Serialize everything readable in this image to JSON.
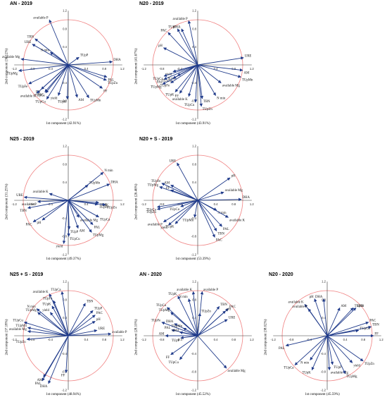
{
  "ticks": [
    -1.2,
    -0.8,
    -0.4,
    0.4,
    0.8,
    1.2
  ],
  "arrow_color": "#1f3a8a",
  "circle_color": "#f08080",
  "chart_data": [
    {
      "type": "biplot",
      "title": "AN - 2019",
      "xlabel": "1st component (42.91%)",
      "ylabel": "2nd component (30.12%)",
      "xlim": [
        -1.2,
        1.2
      ],
      "ylim": [
        -1.2,
        1.2
      ],
      "grid": false,
      "vectors": [
        {
          "label": "available P",
          "x": -0.42,
          "y": 1.0
        },
        {
          "label": "TBN",
          "x": -0.74,
          "y": 0.58
        },
        {
          "label": "URE",
          "x": -0.8,
          "y": 0.46
        },
        {
          "label": "N min",
          "x": -0.4,
          "y": 0.28
        },
        {
          "label": "available Mg",
          "x": -1.05,
          "y": 0.13
        },
        {
          "label": "TUpP",
          "x": 0.24,
          "y": 0.17
        },
        {
          "label": "DHA",
          "x": 0.98,
          "y": 0.07
        },
        {
          "label": "TUpMg",
          "x": -1.1,
          "y": -0.13
        },
        {
          "label": "PAL",
          "x": 0.86,
          "y": -0.27
        },
        {
          "label": "TUpZn",
          "x": 0.85,
          "y": -0.34
        },
        {
          "label": "TUpFe",
          "x": -0.88,
          "y": -0.42
        },
        {
          "label": "PH",
          "x": -0.6,
          "y": -0.54
        },
        {
          "label": "PAC",
          "x": -0.52,
          "y": -0.6
        },
        {
          "label": "available K",
          "x": -0.7,
          "y": -0.63
        },
        {
          "label": "TUpCa",
          "x": -0.5,
          "y": -0.62
        },
        {
          "label": "FF",
          "x": 0.76,
          "y": -0.52
        },
        {
          "label": "TUpCu",
          "x": -0.48,
          "y": -0.76
        },
        {
          "label": "yield",
          "x": -0.22,
          "y": -0.68
        },
        {
          "label": "TUpK",
          "x": -0.02,
          "y": -0.76
        },
        {
          "label": "AM",
          "x": 0.2,
          "y": -0.72
        },
        {
          "label": "TUpMn",
          "x": 0.46,
          "y": -0.73
        }
      ]
    },
    {
      "type": "biplot",
      "title": "N20 - 2019",
      "xlabel": "1st component (43.91%)",
      "ylabel": "2nd component (41.67%)",
      "xlim": [
        -1.2,
        1.2
      ],
      "ylim": [
        -1.2,
        1.2
      ],
      "grid": false,
      "vectors": [
        {
          "label": "available P",
          "x": -0.2,
          "y": 0.98
        },
        {
          "label": "DHA",
          "x": -0.36,
          "y": 0.8
        },
        {
          "label": "TUpP",
          "x": -0.45,
          "y": 0.8
        },
        {
          "label": "PAC",
          "x": -0.66,
          "y": 0.72
        },
        {
          "label": "pH",
          "x": -0.76,
          "y": 0.38
        },
        {
          "label": "URE",
          "x": 1.02,
          "y": 0.16
        },
        {
          "label": "AM",
          "x": 1.0,
          "y": -0.12
        },
        {
          "label": "TUpMn",
          "x": 0.96,
          "y": -0.27
        },
        {
          "label": "yield",
          "x": -0.55,
          "y": -0.15
        },
        {
          "label": "TUpCa",
          "x": -0.75,
          "y": -0.25
        },
        {
          "label": "PAL",
          "x": -0.75,
          "y": -0.32
        },
        {
          "label": "N min",
          "x": -0.45,
          "y": -0.24
        },
        {
          "label": "TUpZn",
          "x": -0.55,
          "y": -0.3
        },
        {
          "label": "TUpFe",
          "x": -0.6,
          "y": -0.4
        },
        {
          "label": "TUpMg",
          "x": -0.78,
          "y": -0.43
        },
        {
          "label": "available Mg",
          "x": 0.52,
          "y": -0.4
        },
        {
          "label": "TUpK",
          "x": -0.5,
          "y": -0.6
        },
        {
          "label": "FF",
          "x": -0.4,
          "y": -0.63
        },
        {
          "label": "available K",
          "x": -0.2,
          "y": -0.7
        },
        {
          "label": "N min",
          "x": 0.4,
          "y": -0.68
        },
        {
          "label": "TBN",
          "x": 0.1,
          "y": -0.75
        },
        {
          "label": "TUpCu",
          "x": -0.05,
          "y": -0.83
        },
        {
          "label": "TUpZn",
          "x": 0.08,
          "y": -0.92
        }
      ]
    },
    {
      "type": "biplot",
      "title": "N25 - 2019",
      "xlabel": "1st component (49.37%)",
      "ylabel": "2nd component (31.25%)",
      "xlim": [
        -1.2,
        1.2
      ],
      "ylim": [
        -1.2,
        1.2
      ],
      "grid": false,
      "vectors": [
        {
          "label": "N min",
          "x": 0.78,
          "y": 0.62
        },
        {
          "label": "DHA",
          "x": 0.92,
          "y": 0.36
        },
        {
          "label": "TUpMn",
          "x": 0.44,
          "y": 0.34
        },
        {
          "label": "available K",
          "x": -0.42,
          "y": 0.15
        },
        {
          "label": "URE",
          "x": -0.98,
          "y": 0.07
        },
        {
          "label": "available P",
          "x": -0.68,
          "y": -0.03
        },
        {
          "label": "TBN",
          "x": -0.9,
          "y": -0.17
        },
        {
          "label": "TUpK",
          "x": 0.68,
          "y": -0.05
        },
        {
          "label": "TUpZn",
          "x": 0.83,
          "y": -0.1
        },
        {
          "label": "TUpFe",
          "x": 0.66,
          "y": -0.09
        },
        {
          "label": "PAC",
          "x": -0.78,
          "y": -0.48
        },
        {
          "label": "pH",
          "x": -0.58,
          "y": -0.44
        },
        {
          "label": "available Mg",
          "x": 0.24,
          "y": -0.38
        },
        {
          "label": "TUpCa",
          "x": 0.68,
          "y": -0.37
        },
        {
          "label": "PAL",
          "x": 0.55,
          "y": -0.54
        },
        {
          "label": "AM",
          "x": 0.22,
          "y": -0.62
        },
        {
          "label": "TUpP",
          "x": 0.02,
          "y": -0.64
        },
        {
          "label": "TUpMg",
          "x": 0.52,
          "y": -0.71
        },
        {
          "label": "TUpCu",
          "x": 0.01,
          "y": -0.8
        },
        {
          "label": "yield",
          "x": -0.1,
          "y": -0.96
        }
      ]
    },
    {
      "type": "biplot",
      "title": "N20 + S - 2019",
      "xlabel": "1st component (53.39%)",
      "ylabel": "2nd component (26.46%)",
      "xlim": [
        -1.2,
        1.2
      ],
      "ylim": [
        -1.2,
        1.2
      ],
      "grid": false,
      "vectors": [
        {
          "label": "URE",
          "x": -0.46,
          "y": 0.83
        },
        {
          "label": "pH",
          "x": 0.72,
          "y": 0.5
        },
        {
          "label": "TUpFe",
          "x": -0.8,
          "y": 0.38
        },
        {
          "label": "TUpMg",
          "x": -0.85,
          "y": 0.3
        },
        {
          "label": "AM",
          "x": -0.6,
          "y": 0.34
        },
        {
          "label": "FF",
          "x": -0.6,
          "y": 0.23
        },
        {
          "label": "available Mg",
          "x": 0.58,
          "y": 0.18
        },
        {
          "label": "DHA",
          "x": 0.97,
          "y": 0.02
        },
        {
          "label": "TUpCa",
          "x": -0.9,
          "y": -0.15
        },
        {
          "label": "TUpCu",
          "x": -0.38,
          "y": -0.14
        },
        {
          "label": "TUpZn",
          "x": -0.9,
          "y": -0.2
        },
        {
          "label": "N min",
          "x": 0.42,
          "y": -0.22
        },
        {
          "label": "available K",
          "x": 0.68,
          "y": -0.38
        },
        {
          "label": "TUpMn",
          "x": -0.07,
          "y": -0.38
        },
        {
          "label": "available P",
          "x": -0.76,
          "y": -0.48
        },
        {
          "label": "TUpK",
          "x": -0.5,
          "y": -0.52
        },
        {
          "label": "yield",
          "x": -0.65,
          "y": -0.55
        },
        {
          "label": "PAL",
          "x": 0.54,
          "y": -0.58
        },
        {
          "label": "TBN",
          "x": 0.42,
          "y": -0.68
        },
        {
          "label": "PAC",
          "x": 0.38,
          "y": -0.82
        }
      ]
    },
    {
      "type": "biplot",
      "title": "N25 + S - 2019",
      "xlabel": "1st component (48.94%)",
      "ylabel": "2nd component (37.18%)",
      "xlim": [
        -1.2,
        1.2
      ],
      "ylim": [
        -1.2,
        1.2
      ],
      "grid": false,
      "vectors": [
        {
          "label": "TUpCa",
          "x": -0.14,
          "y": 0.98
        },
        {
          "label": "available K",
          "x": -0.42,
          "y": 0.93
        },
        {
          "label": "TUpFe",
          "x": -0.33,
          "y": 0.78
        },
        {
          "label": "TUpK",
          "x": -0.36,
          "y": 0.66
        },
        {
          "label": "N min",
          "x": -0.7,
          "y": 0.6
        },
        {
          "label": "TUpMg",
          "x": -0.68,
          "y": 0.52
        },
        {
          "label": "yield",
          "x": -0.4,
          "y": 0.52
        },
        {
          "label": "TBN",
          "x": 0.38,
          "y": 0.72
        },
        {
          "label": "TUpP",
          "x": 0.55,
          "y": 0.56
        },
        {
          "label": "PAC",
          "x": 0.6,
          "y": 0.46
        },
        {
          "label": "pH",
          "x": 0.6,
          "y": 0.32
        },
        {
          "label": "TUpCu",
          "x": -0.98,
          "y": 0.3
        },
        {
          "label": "TUpMn",
          "x": -0.9,
          "y": 0.18
        },
        {
          "label": "available Mg",
          "x": -0.9,
          "y": 0.1
        },
        {
          "label": "URE",
          "x": 0.64,
          "y": 0.12
        },
        {
          "label": "available P",
          "x": 0.95,
          "y": 0.04
        },
        {
          "label": "TUpZn",
          "x": -0.92,
          "y": -0.08
        },
        {
          "label": "FF",
          "x": -0.05,
          "y": -0.82
        },
        {
          "label": "AM",
          "x": -0.55,
          "y": -0.92
        },
        {
          "label": "PAL",
          "x": -0.58,
          "y": -1.0
        },
        {
          "label": "DHA",
          "x": -0.44,
          "y": -1.06
        }
      ]
    },
    {
      "type": "biplot",
      "title": "AN - 2020",
      "xlabel": "1st component (45.52%)",
      "ylabel": "2nd component (28.10%)",
      "xlim": [
        -1.2,
        1.2
      ],
      "ylim": [
        -1.2,
        1.2
      ],
      "grid": false,
      "vectors": [
        {
          "label": "available K",
          "x": -0.1,
          "y": 0.98
        },
        {
          "label": "available P",
          "x": 0.1,
          "y": 0.98
        },
        {
          "label": "TUpK",
          "x": -0.44,
          "y": 0.88
        },
        {
          "label": "N min",
          "x": -0.2,
          "y": 0.82
        },
        {
          "label": "TUpCa",
          "x": -0.68,
          "y": 0.63
        },
        {
          "label": "TUpMg",
          "x": -0.6,
          "y": 0.52
        },
        {
          "label": "TUpZn",
          "x": 0.05,
          "y": 0.5
        },
        {
          "label": "TBN",
          "x": 0.48,
          "y": 0.65
        },
        {
          "label": "PAC",
          "x": 0.68,
          "y": 0.6
        },
        {
          "label": "pH",
          "x": 0.62,
          "y": 0.55
        },
        {
          "label": "URE",
          "x": 0.66,
          "y": 0.36
        },
        {
          "label": "TUpFe",
          "x": -0.8,
          "y": 0.3
        },
        {
          "label": "DHA",
          "x": -0.52,
          "y": 0.27
        },
        {
          "label": "TUpMn",
          "x": -0.32,
          "y": 0.17
        },
        {
          "label": "PAL",
          "x": -0.58,
          "y": 0.13
        },
        {
          "label": "yield",
          "x": -0.4,
          "y": 0.08
        },
        {
          "label": "AM",
          "x": -0.72,
          "y": 0.0
        },
        {
          "label": "TUpP",
          "x": -0.38,
          "y": -0.05
        },
        {
          "label": "FF",
          "x": -0.6,
          "y": -0.42
        },
        {
          "label": "TUpCu",
          "x": -0.4,
          "y": -0.53
        },
        {
          "label": "available Mg",
          "x": 0.64,
          "y": -0.72
        }
      ]
    },
    {
      "type": "biplot",
      "title": "N20 - 2020",
      "xlabel": "1st component (45.59%)",
      "ylabel": "2nd component (38.02%)",
      "xlim": [
        -1.2,
        1.2
      ],
      "ylim": [
        -1.2,
        1.2
      ],
      "grid": false,
      "vectors": [
        {
          "label": "pH",
          "x": -0.28,
          "y": 0.82
        },
        {
          "label": "DHA",
          "x": -0.08,
          "y": 0.82
        },
        {
          "label": "available K",
          "x": -0.5,
          "y": 0.7
        },
        {
          "label": "available P",
          "x": -0.42,
          "y": 0.6
        },
        {
          "label": "AM",
          "x": 0.28,
          "y": 0.62
        },
        {
          "label": "TUpFe",
          "x": 0.58,
          "y": 0.62
        },
        {
          "label": "URE",
          "x": 0.64,
          "y": 0.62
        },
        {
          "label": "PAC",
          "x": 0.92,
          "y": 0.3
        },
        {
          "label": "TBN",
          "x": 0.98,
          "y": 0.2
        },
        {
          "label": "TUpCu",
          "x": 0.7,
          "y": 0.12
        },
        {
          "label": "FF",
          "x": 1.03,
          "y": 0.0
        },
        {
          "label": "PAL",
          "x": -0.92,
          "y": -0.22
        },
        {
          "label": "N min",
          "x": -0.38,
          "y": -0.54
        },
        {
          "label": "TUpCa",
          "x": -0.72,
          "y": -0.65
        },
        {
          "label": "TUpK",
          "x": -0.34,
          "y": -0.76
        },
        {
          "label": "TUpP",
          "x": 0.12,
          "y": -0.64
        },
        {
          "label": "available Mg",
          "x": 0.05,
          "y": -0.76
        },
        {
          "label": "yield",
          "x": 0.56,
          "y": -0.6
        },
        {
          "label": "TUpZn",
          "x": 0.8,
          "y": -0.56
        },
        {
          "label": "TUpMg",
          "x": 0.4,
          "y": -0.84
        }
      ]
    }
  ]
}
